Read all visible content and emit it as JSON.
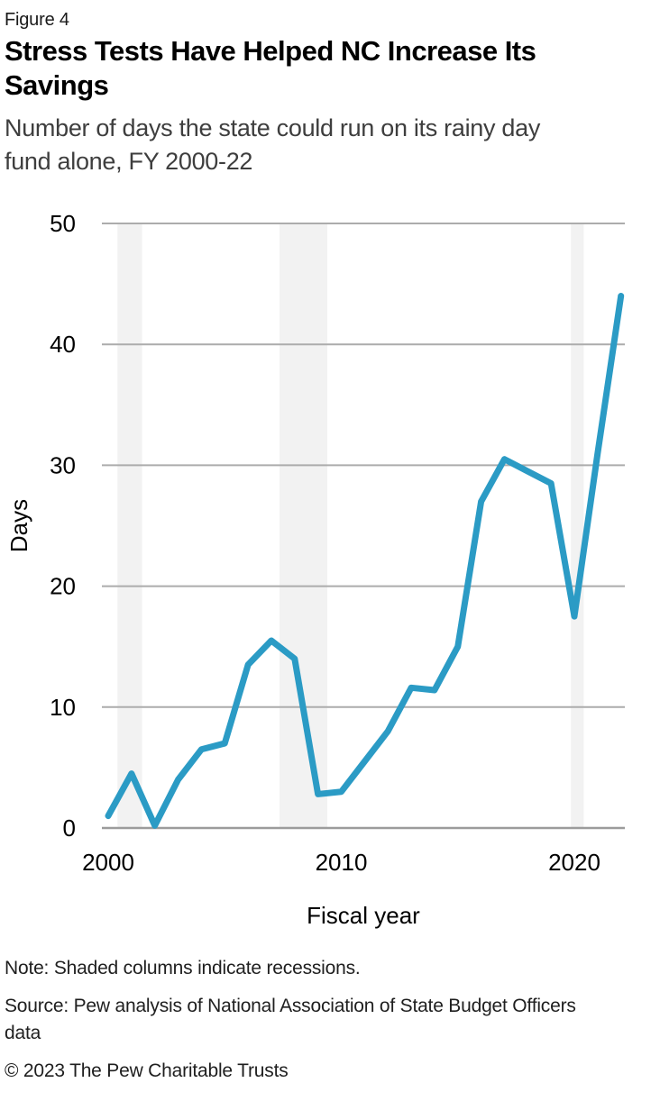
{
  "figure_label": "Figure 4",
  "title": "Stress Tests Have Helped NC Increase Its\nSavings",
  "subtitle": "Number of days the state could run on its rainy day\nfund alone, FY 2000-22",
  "note": "Note: Shaded columns indicate recessions.",
  "source": "Source: Pew analysis of National Association of State Budget Officers\ndata",
  "copyright": "© 2023 The Pew Charitable Trusts",
  "chart_data": {
    "type": "line",
    "x": [
      2000,
      2001,
      2002,
      2003,
      2004,
      2005,
      2006,
      2007,
      2008,
      2009,
      2010,
      2011,
      2012,
      2013,
      2014,
      2015,
      2016,
      2017,
      2018,
      2019,
      2020,
      2021,
      2022
    ],
    "values": [
      1,
      4.5,
      0.2,
      4,
      6.5,
      7,
      13.5,
      15.5,
      14,
      2.8,
      3,
      5.5,
      8,
      11.6,
      11.4,
      15,
      27,
      30.5,
      29.5,
      28.5,
      17.5,
      31,
      44
    ],
    "series_name": "Days the state could run on its rainy day fund",
    "xlabel": "Fiscal year",
    "ylabel": "Days",
    "ylim": [
      0,
      50
    ],
    "yticks": [
      0,
      10,
      20,
      30,
      40,
      50
    ],
    "xticks": [
      2000,
      2010,
      2020
    ],
    "grid": true,
    "legend": "none",
    "recession_bands": [
      [
        2000.4,
        2001.45
      ],
      [
        2007.35,
        2009.4
      ],
      [
        2019.85,
        2020.4
      ]
    ],
    "colors": {
      "line": "#2B9BC5",
      "band": "#F2F2F2",
      "grid": "#ACACAC",
      "baseline": "#9C9C9C",
      "text": "#000000"
    }
  }
}
